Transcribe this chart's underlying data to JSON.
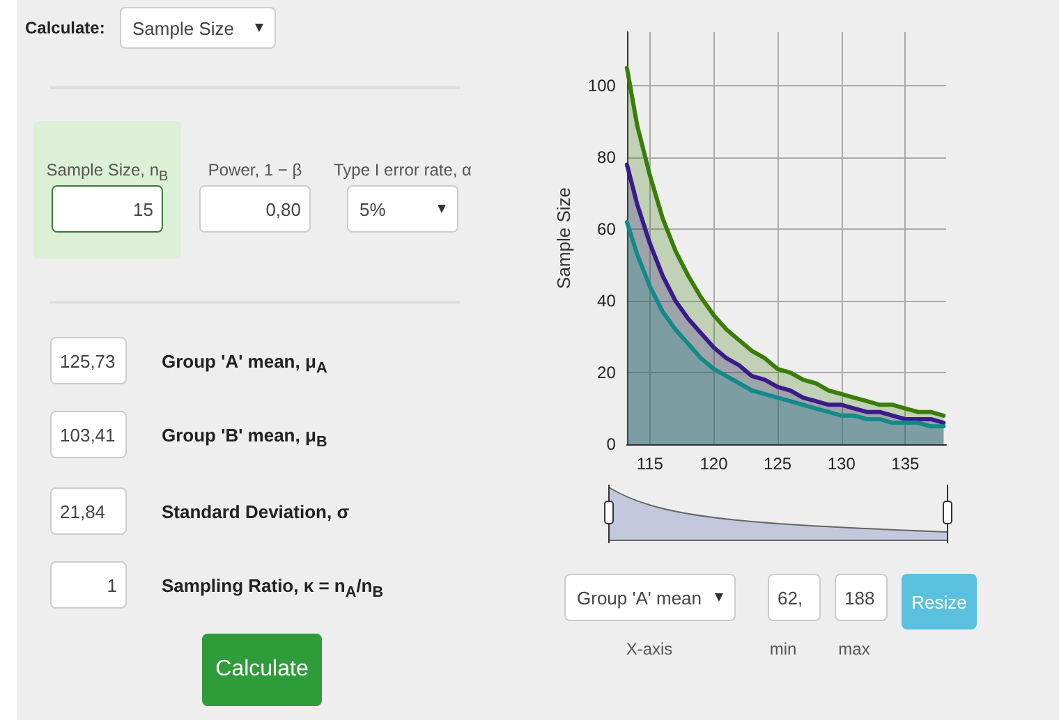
{
  "chart_data": {
    "type": "area",
    "ylabel": "Sample Size",
    "x": [
      113.2,
      114,
      115,
      116,
      117,
      118,
      119,
      120,
      121,
      122,
      123,
      124,
      125,
      126,
      127,
      128,
      129,
      130,
      131,
      132,
      133,
      134,
      135,
      136,
      137,
      138
    ],
    "series": [
      {
        "color": "#3a7d0a",
        "values": [
          105,
          89,
          75,
          63,
          54,
          47,
          41,
          36,
          32,
          29,
          26,
          24,
          21,
          20,
          18,
          17,
          15,
          14,
          13,
          12,
          11,
          11,
          10,
          9,
          9,
          8
        ]
      },
      {
        "color": "#3b1a8c",
        "values": [
          78,
          67,
          56,
          47,
          40,
          35,
          31,
          27,
          24,
          22,
          19,
          18,
          16,
          15,
          13,
          12,
          11,
          11,
          10,
          9,
          9,
          8,
          7,
          7,
          7,
          6
        ]
      },
      {
        "color": "#138a8a",
        "values": [
          62,
          53,
          44,
          37,
          32,
          28,
          24,
          21,
          19,
          17,
          15,
          14,
          13,
          12,
          11,
          10,
          9,
          8,
          8,
          7,
          7,
          6,
          6,
          6,
          5,
          5
        ]
      }
    ],
    "xlim": [
      113.2,
      138.2
    ],
    "xticks": [
      115,
      120,
      125,
      130,
      135
    ],
    "ylim": [
      0,
      115
    ],
    "yticks": [
      0,
      20,
      40,
      60,
      80,
      100
    ],
    "grid": true,
    "marker": "none",
    "line_style": "solid",
    "annotations": [
      "Calculate:",
      "Sample Size",
      "Sample Size, n$_{B}$",
      "Power, 1 − β",
      "Type I error rate, α",
      "15",
      "0,80",
      "5%",
      "125,73",
      "Group 'A' mean, μ$_{A}$",
      "103,41",
      "Group 'B' mean, μ$_{B}$",
      "21,84",
      "Standard Deviation, σ",
      "1",
      "Sampling Ratio, κ = n$_{A}$/n$_{B}$",
      "Calculate",
      "Group 'A' mean",
      "X-axis",
      "62,",
      "min",
      "188",
      "max",
      "Resize"
    ]
  }
}
